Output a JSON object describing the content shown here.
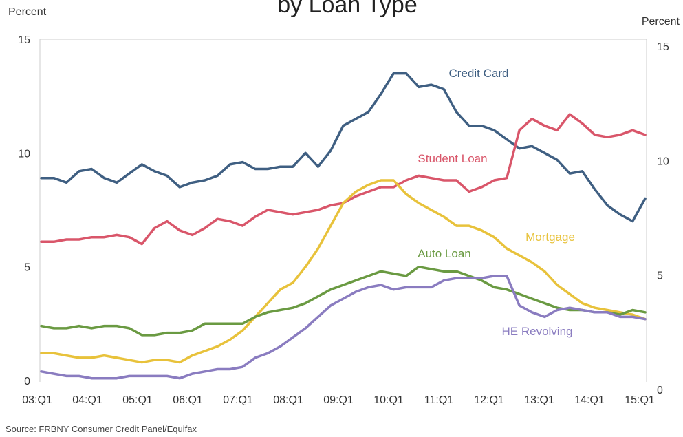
{
  "chart_data": {
    "type": "line",
    "title": "by Loan Type",
    "y_unit_left": "Percent",
    "y_unit_right": "Percent",
    "source": "Source: FRBNY Consumer Credit Panel/Equifax",
    "ylim": [
      0,
      15
    ],
    "yticks": [
      0,
      5,
      10,
      15
    ],
    "x_ticks": [
      "03:Q1",
      "04:Q1",
      "05:Q1",
      "06:Q1",
      "07:Q1",
      "08:Q1",
      "09:Q1",
      "10:Q1",
      "11:Q1",
      "12:Q1",
      "13:Q1",
      "14:Q1",
      "15:Q1"
    ],
    "grid": false,
    "series": [
      {
        "name": "Credit Card",
        "color": "#3f5f82",
        "values": [
          8.9,
          8.9,
          8.7,
          9.2,
          9.3,
          8.9,
          8.7,
          9.1,
          9.5,
          9.2,
          9.0,
          8.5,
          8.7,
          8.8,
          9.0,
          9.5,
          9.6,
          9.3,
          9.3,
          9.4,
          9.4,
          10.0,
          9.4,
          10.1,
          11.2,
          11.5,
          11.8,
          12.6,
          13.5,
          13.5,
          12.9,
          13.0,
          12.8,
          11.8,
          11.2,
          11.2,
          11.0,
          10.6,
          10.2,
          10.3,
          10.0,
          9.7,
          9.1,
          9.2,
          8.4,
          7.7,
          7.3,
          7.0,
          8.0
        ]
      },
      {
        "name": "Student Loan",
        "color": "#d9566a",
        "values": [
          6.1,
          6.1,
          6.2,
          6.2,
          6.3,
          6.3,
          6.4,
          6.3,
          6.0,
          6.7,
          7.0,
          6.6,
          6.4,
          6.7,
          7.1,
          7.0,
          6.8,
          7.2,
          7.5,
          7.4,
          7.3,
          7.4,
          7.5,
          7.7,
          7.8,
          8.1,
          8.3,
          8.5,
          8.5,
          8.8,
          9.0,
          8.9,
          8.8,
          8.8,
          8.3,
          8.5,
          8.8,
          8.9,
          11.0,
          11.5,
          11.2,
          11.0,
          11.7,
          11.3,
          10.8,
          10.7,
          10.8,
          11.0,
          10.8
        ]
      },
      {
        "name": "Mortgage",
        "color": "#e8c23b",
        "values": [
          1.2,
          1.2,
          1.1,
          1.0,
          1.0,
          1.1,
          1.0,
          0.9,
          0.8,
          0.9,
          0.9,
          0.8,
          1.1,
          1.3,
          1.5,
          1.8,
          2.2,
          2.8,
          3.4,
          4.0,
          4.3,
          5.0,
          5.8,
          6.8,
          7.8,
          8.3,
          8.6,
          8.8,
          8.8,
          8.2,
          7.8,
          7.5,
          7.2,
          6.8,
          6.8,
          6.6,
          6.3,
          5.8,
          5.5,
          5.2,
          4.8,
          4.2,
          3.8,
          3.4,
          3.2,
          3.1,
          3.0,
          2.9,
          2.7
        ]
      },
      {
        "name": "Auto Loan",
        "color": "#6a9a42",
        "values": [
          2.4,
          2.3,
          2.3,
          2.4,
          2.3,
          2.4,
          2.4,
          2.3,
          2.0,
          2.0,
          2.1,
          2.1,
          2.2,
          2.5,
          2.5,
          2.5,
          2.5,
          2.8,
          3.0,
          3.1,
          3.2,
          3.4,
          3.7,
          4.0,
          4.2,
          4.4,
          4.6,
          4.8,
          4.7,
          4.6,
          5.0,
          4.9,
          4.8,
          4.8,
          4.6,
          4.4,
          4.1,
          4.0,
          3.8,
          3.6,
          3.4,
          3.2,
          3.1,
          3.1,
          3.0,
          3.0,
          2.9,
          3.1,
          3.0
        ]
      },
      {
        "name": "HE Revolving",
        "color": "#8a7cc0",
        "values": [
          0.4,
          0.3,
          0.2,
          0.2,
          0.1,
          0.1,
          0.1,
          0.2,
          0.2,
          0.2,
          0.2,
          0.1,
          0.3,
          0.4,
          0.5,
          0.5,
          0.6,
          1.0,
          1.2,
          1.5,
          1.9,
          2.3,
          2.8,
          3.3,
          3.6,
          3.9,
          4.1,
          4.2,
          4.0,
          4.1,
          4.1,
          4.1,
          4.4,
          4.5,
          4.5,
          4.5,
          4.6,
          4.6,
          3.3,
          3.0,
          2.8,
          3.1,
          3.2,
          3.1,
          3.0,
          3.0,
          2.8,
          2.8,
          2.7
        ]
      }
    ]
  }
}
